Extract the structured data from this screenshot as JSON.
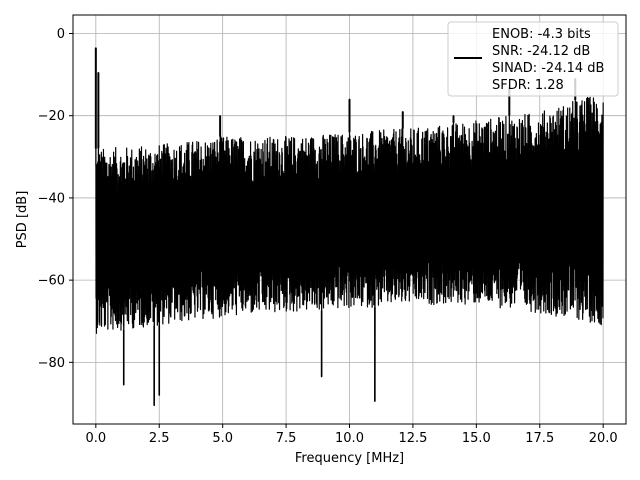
{
  "chart_data": {
    "type": "line",
    "title": "",
    "xlabel": "Frequency [MHz]",
    "ylabel": "PSD [dB]",
    "xlim": [
      -0.9,
      20.9
    ],
    "ylim": [
      -95,
      4.5
    ],
    "xticks": [
      0.0,
      2.5,
      5.0,
      7.5,
      10.0,
      12.5,
      15.0,
      17.5,
      20.0
    ],
    "xtick_labels": [
      "0.0",
      "2.5",
      "5.0",
      "7.5",
      "10.0",
      "12.5",
      "15.0",
      "17.5",
      "20.0"
    ],
    "yticks": [
      0,
      -20,
      -40,
      -60,
      -80
    ],
    "ytick_labels": [
      "0",
      "−20",
      "−40",
      "−60",
      "−80"
    ],
    "grid": true,
    "legend_position": "upper right",
    "legend_lines": [
      "ENOB: -4.3 bits",
      "SNR: -24.12 dB",
      "SINAD: -24.14 dB",
      "SFDR: 1.28"
    ],
    "series": [
      {
        "color": "#000000",
        "noise_floor_band": {
          "x": [
            0.0,
            2.5,
            5.0,
            7.5,
            10.0,
            12.5,
            15.0,
            17.5,
            20.0
          ],
          "upper_dB": [
            -28,
            -27,
            -25,
            -25,
            -24,
            -23,
            -21,
            -19,
            -14
          ],
          "lower_dB": [
            -73,
            -71,
            -69,
            -68,
            -67,
            -66,
            -66,
            -68,
            -71
          ]
        },
        "peaks": [
          {
            "x": 0.0,
            "y": -3.5
          },
          {
            "x": 0.1,
            "y": -9.5
          },
          {
            "x": 4.9,
            "y": -20.0
          },
          {
            "x": 10.0,
            "y": -16.0
          },
          {
            "x": 12.1,
            "y": -19.0
          },
          {
            "x": 14.1,
            "y": -20.0
          },
          {
            "x": 16.3,
            "y": -13.0
          },
          {
            "x": 18.9,
            "y": -11.0
          }
        ],
        "dips": [
          {
            "x": 2.3,
            "y": -90.5
          },
          {
            "x": 8.9,
            "y": -83.5
          },
          {
            "x": 11.0,
            "y": -89.5
          },
          {
            "x": 1.1,
            "y": -85.5
          },
          {
            "x": 2.5,
            "y": -88.0
          }
        ]
      }
    ]
  },
  "colors": {
    "grid": "#b0b0b0",
    "line": "#000000",
    "legend_border": "#cccccc"
  }
}
